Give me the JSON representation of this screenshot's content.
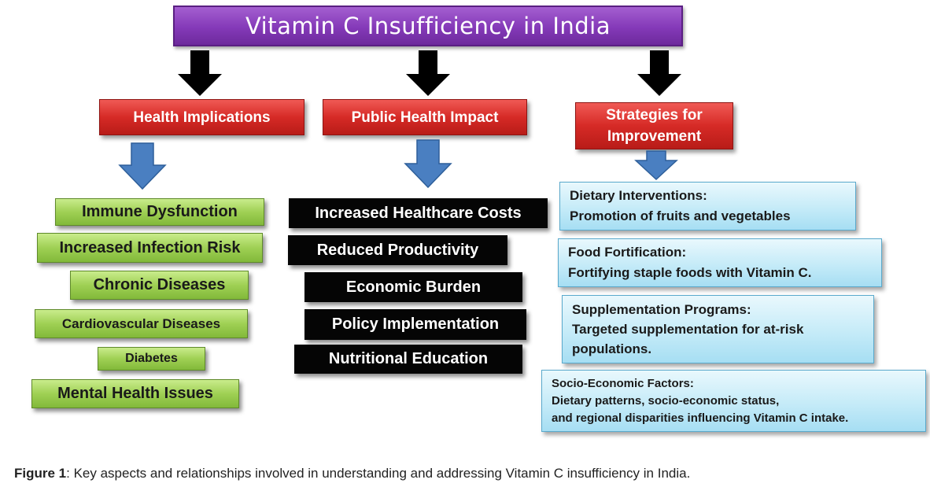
{
  "title": "Vitamin C Insufficiency in India",
  "categories": {
    "health": "Health Implications",
    "public": "Public Health Impact",
    "strategies": [
      "Strategies for",
      "Improvement"
    ]
  },
  "health_items": [
    "Immune Dysfunction",
    "Increased Infection Risk",
    "Chronic Diseases",
    "Cardiovascular Diseases",
    "Diabetes",
    "Mental Health Issues"
  ],
  "public_items": [
    "Increased Healthcare Costs",
    "Reduced Productivity",
    "Economic Burden",
    "Policy Implementation",
    "Nutritional Education"
  ],
  "strategy_items": [
    {
      "lines": [
        "Dietary Interventions:",
        "Promotion of fruits and vegetables"
      ]
    },
    {
      "lines": [
        "Food Fortification:",
        "Fortifying staple foods with Vitamin C."
      ]
    },
    {
      "lines": [
        "Supplementation Programs:",
        "Targeted supplementation for at-risk",
        "populations."
      ]
    },
    {
      "lines": [
        "Socio-Economic Factors:",
        "Dietary patterns, socio-economic status,",
        "and regional disparities influencing Vitamin C intake."
      ]
    }
  ],
  "caption": {
    "label": "Figure 1",
    "text": ": Key aspects and relationships involved in understanding and addressing Vitamin C insufficiency in India."
  },
  "colors": {
    "title": "#8439b8",
    "category": "#d62a26",
    "health": "#9fd054",
    "public": "#050505",
    "strategy": "#c5ebf8",
    "black_arrow": "#000000",
    "blue_arrow": "#4a7fc1"
  },
  "icons": [
    "down-arrow-black",
    "down-arrow-blue"
  ]
}
